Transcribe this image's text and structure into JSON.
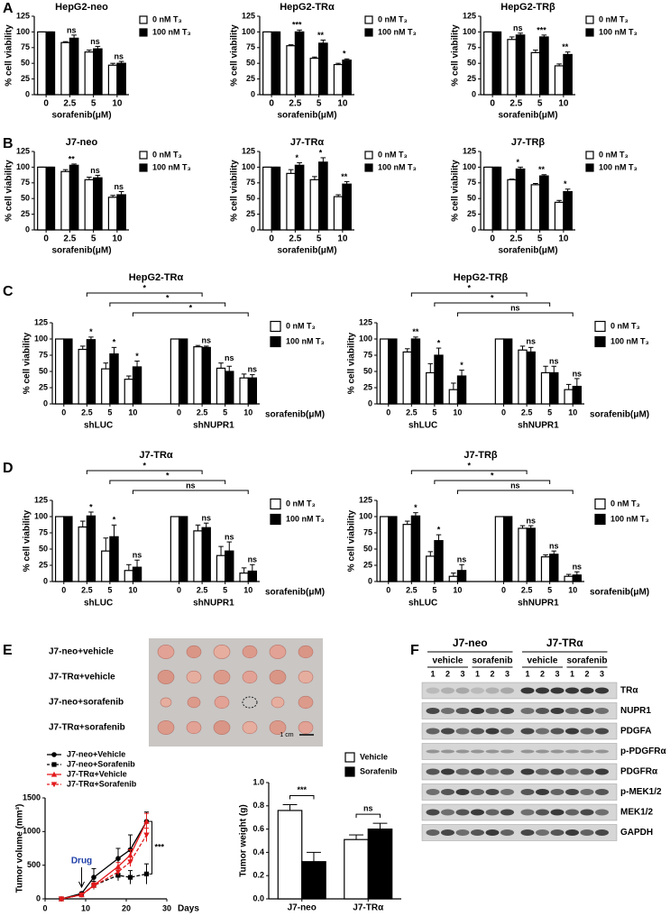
{
  "panel_labels": [
    "A",
    "B",
    "C",
    "D",
    "E",
    "F"
  ],
  "chart_data": [
    {
      "type": "bar",
      "title": "HepG2-neo",
      "categories": [
        "0",
        "2.5",
        "5",
        "10"
      ],
      "xlabel": "sorafenib(μM)",
      "ylabel": "% cell viability",
      "ylim": [
        0,
        125
      ],
      "yticks": [
        0,
        25,
        50,
        75,
        100,
        125
      ],
      "legend": "right",
      "series": [
        {
          "name": "0 nM T₃",
          "color": "#ffffff",
          "values": [
            100,
            83,
            68,
            47
          ],
          "errors": [
            0,
            1.5,
            3,
            3
          ]
        },
        {
          "name": "100 nM T₃",
          "color": "#000000",
          "values": [
            100,
            90,
            73,
            50
          ],
          "errors": [
            0,
            5,
            4,
            3
          ]
        }
      ],
      "significance": [
        null,
        "ns",
        "ns",
        "ns"
      ]
    },
    {
      "type": "bar",
      "title": "HepG2-TRα",
      "categories": [
        "0",
        "2.5",
        "5",
        "10"
      ],
      "xlabel": "sorafenib(μM)",
      "ylabel": "% cell viability",
      "ylim": [
        0,
        125
      ],
      "yticks": [
        0,
        25,
        50,
        75,
        100,
        125
      ],
      "legend": "right",
      "series": [
        {
          "name": "0 nM T₃",
          "color": "#ffffff",
          "values": [
            100,
            78,
            58,
            48
          ],
          "errors": [
            0,
            1.5,
            2,
            2
          ]
        },
        {
          "name": "100 nM T₃",
          "color": "#000000",
          "values": [
            100,
            100,
            82,
            55
          ],
          "errors": [
            0,
            3,
            5,
            2
          ]
        }
      ],
      "significance": [
        null,
        "***",
        "**",
        "*"
      ]
    },
    {
      "type": "bar",
      "title": "HepG2-TRβ",
      "categories": [
        "0",
        "2.5",
        "5",
        "10"
      ],
      "xlabel": "sorafenib(μM)",
      "ylabel": "% cell viability",
      "ylim": [
        0,
        125
      ],
      "yticks": [
        0,
        25,
        50,
        75,
        100,
        125
      ],
      "legend": "right",
      "series": [
        {
          "name": "0 nM T₃",
          "color": "#ffffff",
          "values": [
            100,
            88,
            67,
            46
          ],
          "errors": [
            0,
            4,
            4,
            3
          ]
        },
        {
          "name": "100 nM T₃",
          "color": "#000000",
          "values": [
            100,
            95,
            92,
            64
          ],
          "errors": [
            0,
            3,
            3,
            4
          ]
        }
      ],
      "significance": [
        null,
        "ns",
        "***",
        "**"
      ]
    },
    {
      "type": "bar",
      "title": "J7-neo",
      "categories": [
        "0",
        "2.5",
        "5",
        "10"
      ],
      "xlabel": "sorafenib(μM)",
      "ylabel": "% cell viability",
      "ylim": [
        0,
        125
      ],
      "yticks": [
        0,
        25,
        50,
        75,
        100,
        125
      ],
      "legend": "right",
      "series": [
        {
          "name": "0 nM T₃",
          "color": "#ffffff",
          "values": [
            100,
            93,
            80,
            52
          ],
          "errors": [
            0,
            3,
            4,
            3
          ]
        },
        {
          "name": "100 nM T₃",
          "color": "#000000",
          "values": [
            100,
            103,
            83,
            56
          ],
          "errors": [
            0,
            2,
            4,
            5
          ]
        }
      ],
      "significance": [
        null,
        "**",
        "ns",
        "ns"
      ]
    },
    {
      "type": "bar",
      "title": "J7-TRα",
      "categories": [
        "0",
        "2.5",
        "5",
        "10"
      ],
      "xlabel": "sorafenib(μM)",
      "ylabel": "% cell viability",
      "ylim": [
        0,
        125
      ],
      "yticks": [
        0,
        25,
        50,
        75,
        100,
        125
      ],
      "legend": "right",
      "series": [
        {
          "name": "0 nM T₃",
          "color": "#ffffff",
          "values": [
            100,
            90,
            80,
            53
          ],
          "errors": [
            0,
            6,
            5,
            3
          ]
        },
        {
          "name": "100 nM T₃",
          "color": "#000000",
          "values": [
            100,
            103,
            108,
            73
          ],
          "errors": [
            0,
            4,
            7,
            4
          ]
        }
      ],
      "significance": [
        null,
        "*",
        "*",
        "**"
      ]
    },
    {
      "type": "bar",
      "title": "J7-TRβ",
      "categories": [
        "0",
        "2.5",
        "5",
        "10"
      ],
      "xlabel": "sorafenib(μM)",
      "ylabel": "% cell viability",
      "ylim": [
        0,
        125
      ],
      "yticks": [
        0,
        25,
        50,
        75,
        100,
        125
      ],
      "legend": "right",
      "series": [
        {
          "name": "0 nM T₃",
          "color": "#ffffff",
          "values": [
            100,
            80,
            72,
            44
          ],
          "errors": [
            0,
            1,
            2,
            3
          ]
        },
        {
          "name": "100 nM T₃",
          "color": "#000000",
          "values": [
            100,
            97,
            86,
            61
          ],
          "errors": [
            0,
            3,
            2,
            4
          ]
        }
      ],
      "significance": [
        null,
        "*",
        "**",
        "*"
      ]
    },
    {
      "type": "bar",
      "title": "HepG2-TRα",
      "categories": [
        "0",
        "2.5",
        "5",
        "10",
        "0",
        "2.5",
        "5",
        "10"
      ],
      "groups": [
        "shLUC",
        "shNUPR1"
      ],
      "xlabel": "sorafenib(μM)",
      "ylabel": "% cell viability",
      "ylim": [
        0,
        125
      ],
      "yticks": [
        0,
        25,
        50,
        75,
        100,
        125
      ],
      "legend": "right",
      "series": [
        {
          "name": "0 nM T₃",
          "color": "#ffffff",
          "values": [
            100,
            84,
            54,
            38,
            100,
            88,
            55,
            40
          ],
          "errors": [
            0,
            5,
            9,
            5,
            0,
            2,
            8,
            6
          ]
        },
        {
          "name": "100 nM T₃",
          "color": "#000000",
          "values": [
            100,
            99,
            77,
            57,
            100,
            87,
            50,
            40
          ],
          "errors": [
            0,
            4,
            10,
            9,
            0,
            2,
            8,
            5
          ]
        }
      ],
      "significance": [
        null,
        "*",
        "*",
        "*",
        null,
        "ns",
        "ns",
        "ns"
      ],
      "brackets": [
        "*",
        "*",
        "*"
      ]
    },
    {
      "type": "bar",
      "title": "HepG2-TRβ",
      "categories": [
        "0",
        "2.5",
        "5",
        "10",
        "0",
        "2.5",
        "5",
        "10"
      ],
      "groups": [
        "shLUC",
        "shNUPR1"
      ],
      "xlabel": "sorafenib(μM)",
      "ylabel": "% cell viability",
      "ylim": [
        0,
        125
      ],
      "yticks": [
        0,
        25,
        50,
        75,
        100,
        125
      ],
      "legend": "right",
      "series": [
        {
          "name": "0 nM T₃",
          "color": "#ffffff",
          "values": [
            100,
            80,
            48,
            22,
            100,
            83,
            48,
            22
          ],
          "errors": [
            0,
            5,
            14,
            10,
            0,
            6,
            10,
            8
          ]
        },
        {
          "name": "100 nM T₃",
          "color": "#000000",
          "values": [
            100,
            100,
            75,
            43,
            100,
            80,
            48,
            27
          ],
          "errors": [
            0,
            3,
            11,
            9,
            0,
            7,
            10,
            12
          ]
        }
      ],
      "significance": [
        null,
        "**",
        "*",
        "*",
        null,
        "ns",
        "ns",
        "ns"
      ],
      "brackets": [
        "*",
        "*",
        "ns"
      ]
    },
    {
      "type": "bar",
      "title": "J7-TRα",
      "categories": [
        "0",
        "2.5",
        "5",
        "10",
        "0",
        "2.5",
        "5",
        "10"
      ],
      "groups": [
        "shLUC",
        "shNUPR1"
      ],
      "xlabel": "sorafenib(μM)",
      "ylabel": "% cell viability",
      "ylim": [
        0,
        125
      ],
      "yticks": [
        0,
        25,
        50,
        75,
        100,
        125
      ],
      "legend": "right",
      "series": [
        {
          "name": "0 nM T₃",
          "color": "#ffffff",
          "values": [
            100,
            84,
            47,
            17,
            100,
            78,
            40,
            13
          ],
          "errors": [
            0,
            9,
            20,
            9,
            0,
            9,
            14,
            8
          ]
        },
        {
          "name": "100 nM T₃",
          "color": "#000000",
          "values": [
            100,
            101,
            69,
            22,
            100,
            83,
            47,
            16
          ],
          "errors": [
            0,
            6,
            18,
            11,
            0,
            7,
            14,
            10
          ]
        }
      ],
      "significance": [
        null,
        "*",
        "*",
        "ns",
        null,
        "ns",
        "ns",
        "ns"
      ],
      "brackets": [
        "*",
        "*",
        "ns"
      ]
    },
    {
      "type": "bar",
      "title": "J7-TRβ",
      "categories": [
        "0",
        "2.5",
        "5",
        "10",
        "0",
        "2.5",
        "5",
        "10"
      ],
      "groups": [
        "shLUC",
        "shNUPR1"
      ],
      "xlabel": "sorafenib(μM)",
      "ylabel": "% cell viability",
      "ylim": [
        0,
        125
      ],
      "yticks": [
        0,
        25,
        50,
        75,
        100,
        125
      ],
      "legend": "right",
      "series": [
        {
          "name": "0 nM T₃",
          "color": "#ffffff",
          "values": [
            100,
            88,
            39,
            8,
            100,
            82,
            38,
            8
          ],
          "errors": [
            0,
            5,
            7,
            5,
            0,
            4,
            3,
            3
          ]
        },
        {
          "name": "100 nM T₃",
          "color": "#000000",
          "values": [
            100,
            101,
            63,
            17,
            100,
            82,
            42,
            10
          ],
          "errors": [
            0,
            5,
            9,
            9,
            0,
            4,
            5,
            5
          ]
        }
      ],
      "significance": [
        null,
        "*",
        "*",
        "ns",
        null,
        "ns",
        "ns",
        "ns"
      ],
      "brackets": [
        "*",
        "*",
        "ns"
      ]
    },
    {
      "type": "line",
      "x": [
        4,
        9,
        12,
        18,
        21,
        25
      ],
      "xlabel": "Days",
      "ylabel": "Tumor volume (mm³)",
      "xlim": [
        0,
        30
      ],
      "xticks": [
        0,
        10,
        20,
        30
      ],
      "ylim": [
        0,
        1500
      ],
      "yticks": [
        0,
        500,
        1000,
        1500
      ],
      "legend": "upper left",
      "series": [
        {
          "name": "J7-neo+Vehicle",
          "color": "#000000",
          "marker": "circle",
          "linestyle": "solid",
          "values": [
            0,
            80,
            320,
            600,
            730,
            1150
          ],
          "errors": [
            0,
            20,
            130,
            150,
            220,
            140
          ]
        },
        {
          "name": "J7-neo+Sorafenib",
          "color": "#000000",
          "marker": "square",
          "linestyle": "dashed",
          "values": [
            0,
            60,
            200,
            350,
            320,
            370
          ],
          "errors": [
            0,
            15,
            60,
            80,
            100,
            150
          ]
        },
        {
          "name": "J7-TRα+Vehicle",
          "color": "#e31a1c",
          "marker": "triangle",
          "linestyle": "solid",
          "values": [
            0,
            60,
            200,
            480,
            650,
            1150
          ],
          "errors": [
            0,
            15,
            40,
            60,
            80,
            120
          ]
        },
        {
          "name": "J7-TRα+Sorafenib",
          "color": "#e31a1c",
          "marker": "triangle-down",
          "linestyle": "dashed",
          "values": [
            0,
            60,
            190,
            400,
            550,
            950
          ],
          "errors": [
            0,
            15,
            40,
            50,
            70,
            100
          ]
        }
      ],
      "annotations": [
        "Drug",
        "***"
      ]
    },
    {
      "type": "bar",
      "categories": [
        "J7-neo",
        "J7-TRα"
      ],
      "ylabel": "Tumor weight (g)",
      "ylim": [
        0,
        1
      ],
      "yticks": [
        {
          "value": 0,
          "label": "0.0"
        },
        0.2,
        0.4,
        0.6,
        0.8,
        {
          "value": 1,
          "label": "1.0"
        }
      ],
      "legend": "upper right",
      "series": [
        {
          "name": "Vehicle",
          "color": "#ffffff",
          "values": [
            0.76,
            0.51
          ],
          "errors": [
            0.05,
            0.04
          ]
        },
        {
          "name": "Sorafenib",
          "color": "#000000",
          "values": [
            0.32,
            0.6
          ],
          "errors": [
            0.08,
            0.05
          ]
        }
      ],
      "significance": [
        "***",
        "ns"
      ]
    }
  ],
  "photo": {
    "rows": [
      "J7-neo+vehicle",
      "J7-TRα+vehicle",
      "J7-neo+sorafenib",
      "J7-TRα+sorafenib"
    ],
    "scale": "1 cm"
  },
  "blot": {
    "groups": [
      "J7-neo",
      "J7-TRα"
    ],
    "treatments": [
      "vehicle",
      "sorafenib",
      "vehicle",
      "sorafenib"
    ],
    "lanes": [
      1,
      2,
      3
    ],
    "proteins": [
      "TRα",
      "NUPR1",
      "PDGFA",
      "p-PDGFRα",
      "PDGFRα",
      "p-MEK1/2",
      "MEK1/2",
      "GAPDH"
    ]
  }
}
